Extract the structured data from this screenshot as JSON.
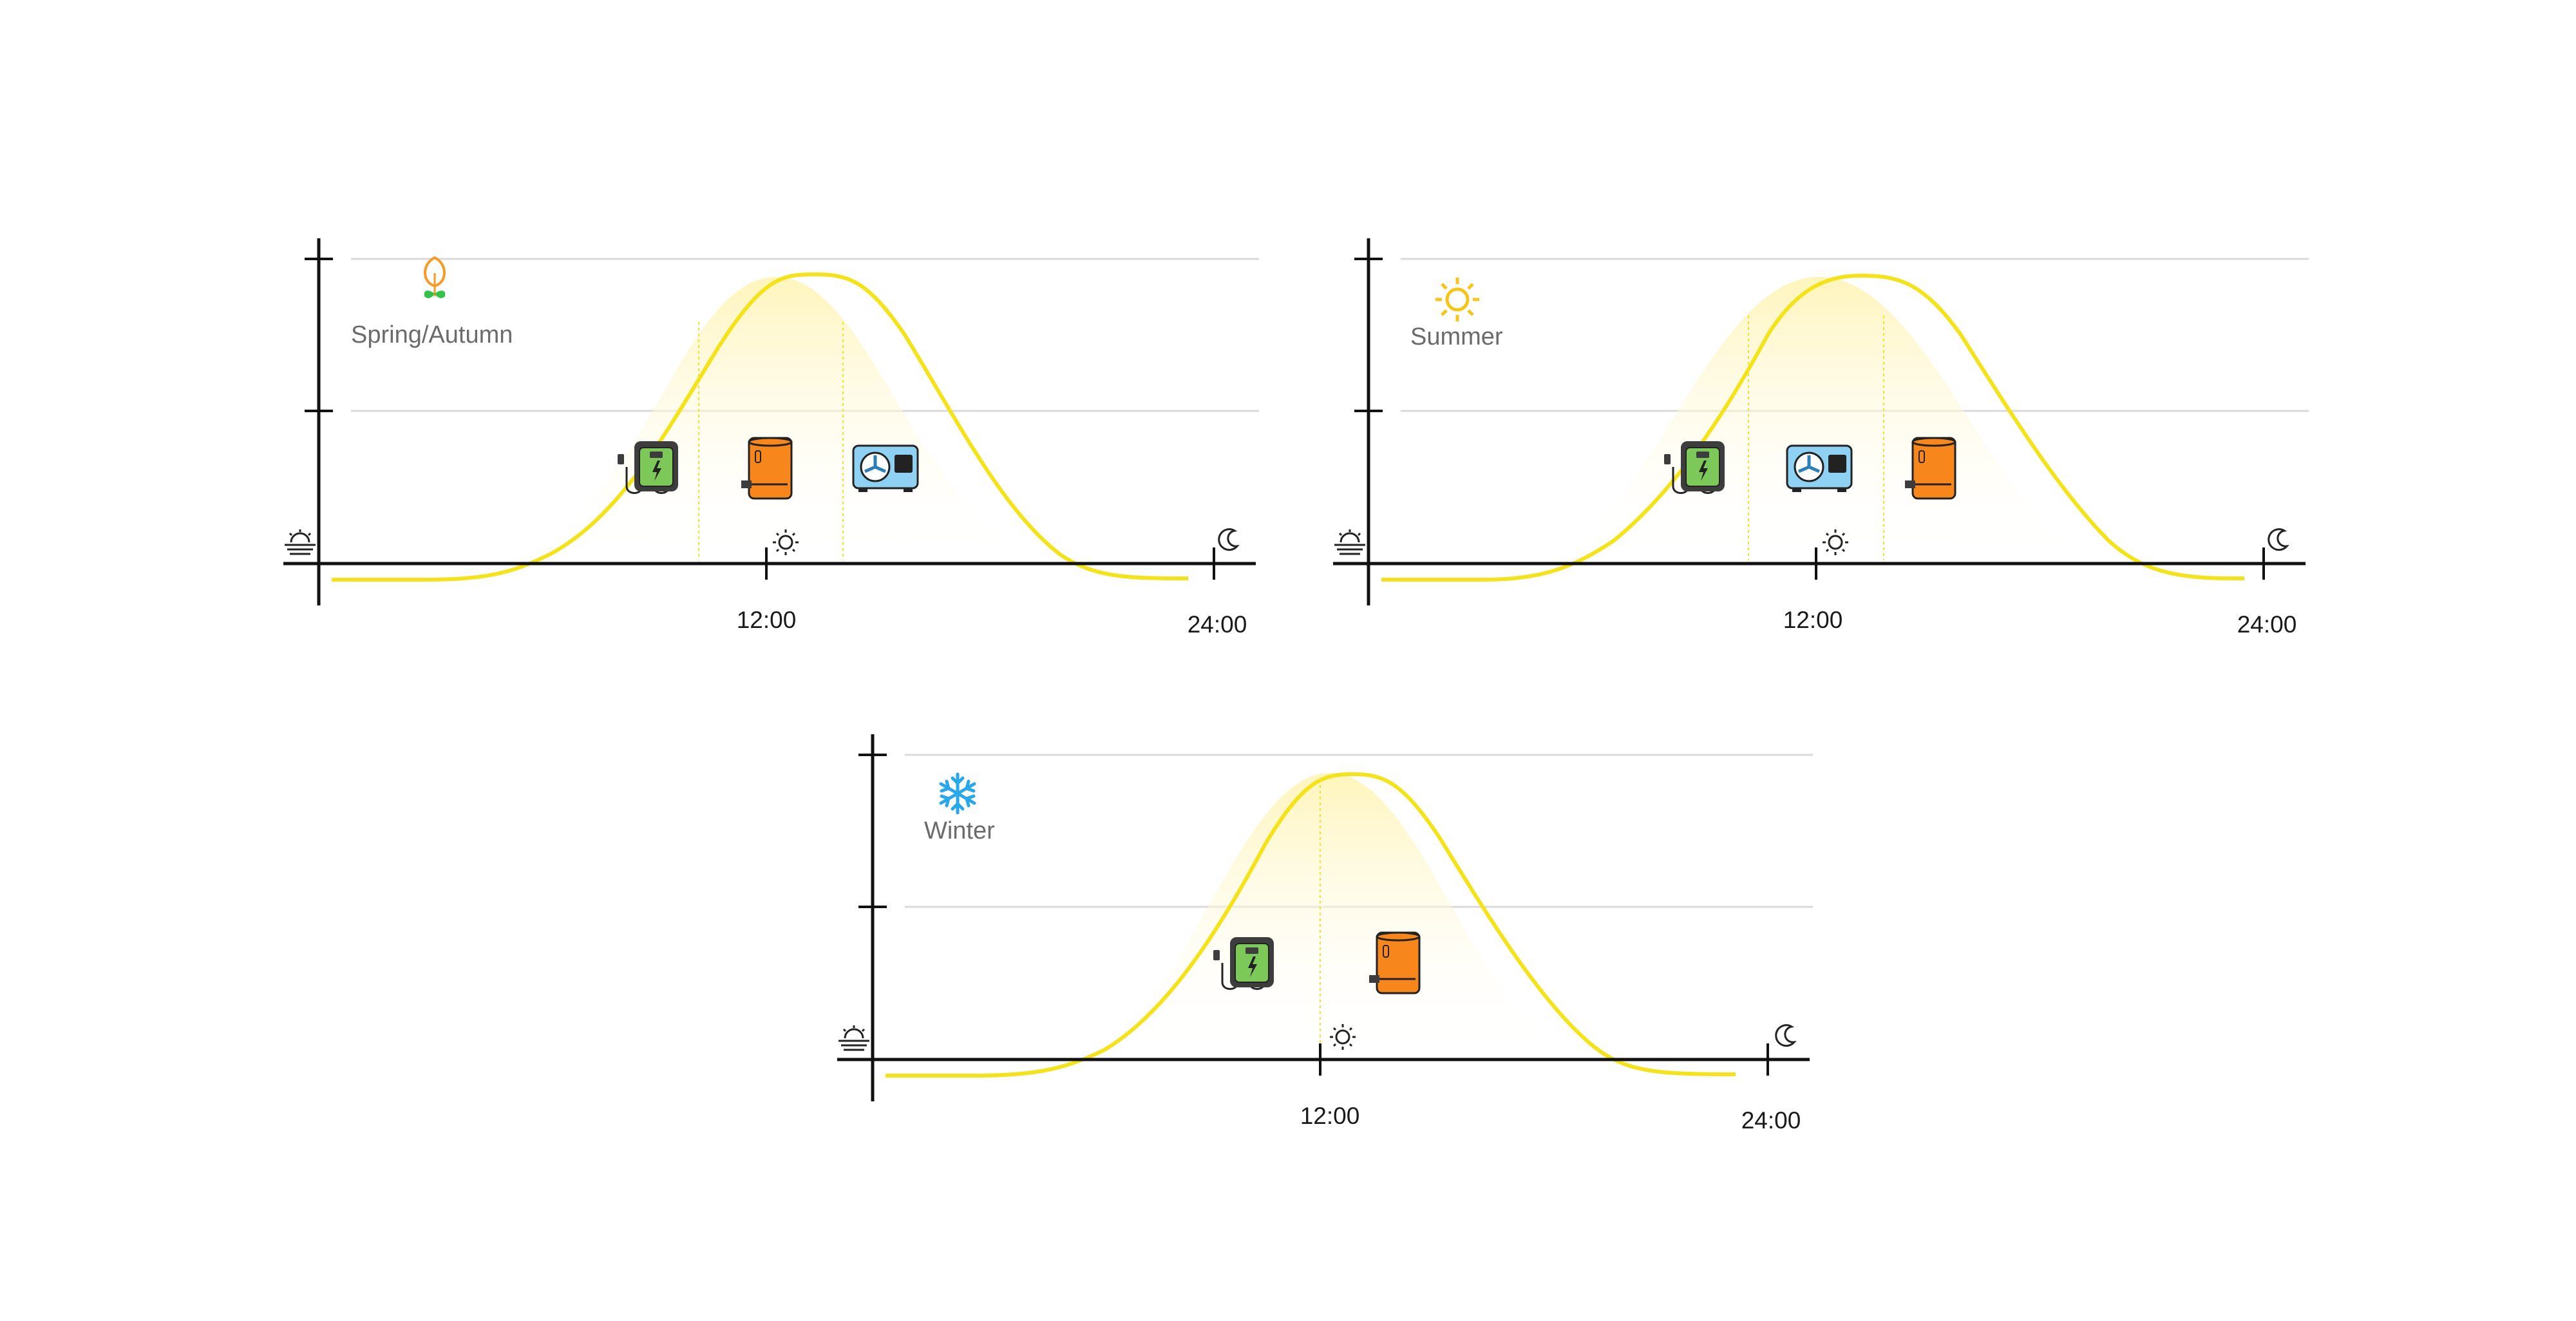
{
  "colors": {
    "curve": "#f4e31a",
    "fill_top": "#fff4b8",
    "axis": "#111111",
    "grid": "#d9d9d9",
    "label": "#6b6b6b",
    "charger_green": "#7cc95a",
    "charger_dark": "#3d3d3d",
    "boiler_orange": "#f7861d",
    "heatpump_blue": "#8fd1f2",
    "leaf_orange": "#f59a23",
    "leaf_green": "#35c24a",
    "sun_yellow": "#f5c518",
    "snow_blue": "#2aa7e8"
  },
  "panels": [
    {
      "id": "spring-autumn",
      "season_label": "Spring/Autumn",
      "season_icon": "sprout-icon",
      "noon_label": "12:00",
      "end_label": "24:00",
      "start_icon": "sunrise-icon",
      "noon_icon": "sun-icon",
      "end_icon": "moon-icon",
      "devices": [
        "ev-charger-icon",
        "boiler-icon",
        "heat-pump-icon"
      ]
    },
    {
      "id": "summer",
      "season_label": "Summer",
      "season_icon": "sun-season-icon",
      "noon_label": "12:00",
      "end_label": "24:00",
      "start_icon": "sunrise-icon",
      "noon_icon": "sun-icon",
      "end_icon": "moon-icon",
      "devices": [
        "ev-charger-icon",
        "heat-pump-icon",
        "boiler-icon"
      ]
    },
    {
      "id": "winter",
      "season_label": "Winter",
      "season_icon": "snowflake-icon",
      "noon_label": "12:00",
      "end_label": "24:00",
      "start_icon": "sunrise-icon",
      "noon_icon": "sun-icon",
      "end_icon": "moon-icon",
      "devices": [
        "ev-charger-icon",
        "boiler-icon"
      ]
    }
  ]
}
